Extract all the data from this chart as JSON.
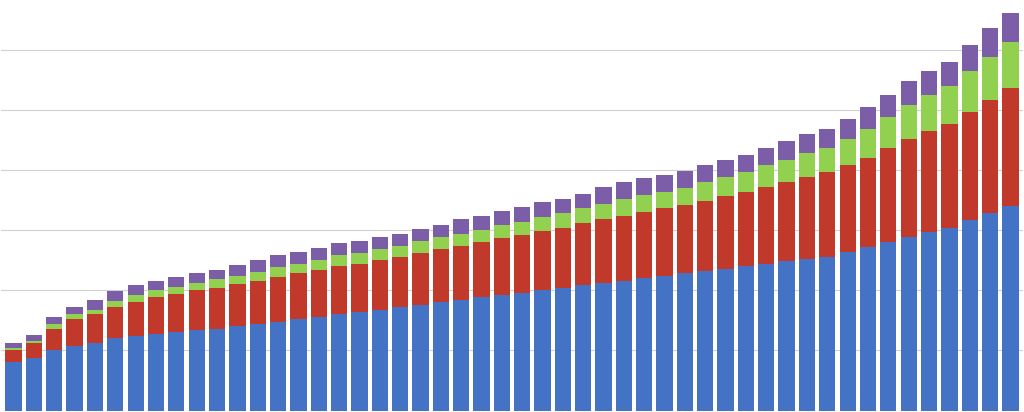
{
  "blue": [
    40,
    44,
    50,
    54,
    56,
    60,
    62,
    64,
    65,
    67,
    68,
    70,
    72,
    74,
    76,
    78,
    80,
    82,
    84,
    86,
    88,
    90,
    92,
    94,
    96,
    98,
    100,
    102,
    104,
    106,
    108,
    110,
    112,
    114,
    116,
    118,
    120,
    122,
    124,
    126,
    128,
    132,
    136,
    140,
    144,
    148,
    152,
    158,
    164,
    170
  ],
  "red": [
    10,
    12,
    18,
    22,
    24,
    26,
    28,
    30,
    32,
    33,
    34,
    35,
    36,
    37,
    38,
    39,
    40,
    40,
    41,
    42,
    43,
    44,
    45,
    46,
    47,
    48,
    49,
    50,
    52,
    53,
    54,
    55,
    56,
    57,
    58,
    60,
    62,
    64,
    66,
    68,
    70,
    72,
    74,
    78,
    82,
    84,
    86,
    90,
    94,
    98
  ],
  "green": [
    2,
    2,
    4,
    4,
    4,
    5,
    6,
    6,
    6,
    6,
    7,
    7,
    7,
    8,
    8,
    8,
    9,
    9,
    9,
    9,
    10,
    10,
    10,
    10,
    11,
    11,
    12,
    12,
    12,
    13,
    14,
    14,
    14,
    14,
    16,
    16,
    16,
    18,
    18,
    20,
    20,
    22,
    24,
    26,
    28,
    30,
    32,
    34,
    36,
    38
  ],
  "purple": [
    4,
    5,
    6,
    6,
    8,
    8,
    8,
    8,
    8,
    8,
    8,
    9,
    10,
    10,
    10,
    10,
    10,
    10,
    10,
    10,
    10,
    10,
    12,
    12,
    12,
    12,
    12,
    12,
    12,
    14,
    14,
    14,
    14,
    14,
    14,
    14,
    14,
    14,
    16,
    16,
    16,
    16,
    18,
    18,
    20,
    20,
    20,
    22,
    24,
    24
  ],
  "bar_color_blue": "#4472C4",
  "bar_color_red": "#C0392B",
  "bar_color_green": "#92D050",
  "bar_color_purple": "#7B5EA7",
  "background": "#FFFFFF",
  "grid_color": "#D0D0D0",
  "ylim": [
    0,
    340
  ],
  "bar_width": 0.8,
  "figsize": [
    10.24,
    4.12
  ],
  "dpi": 100
}
